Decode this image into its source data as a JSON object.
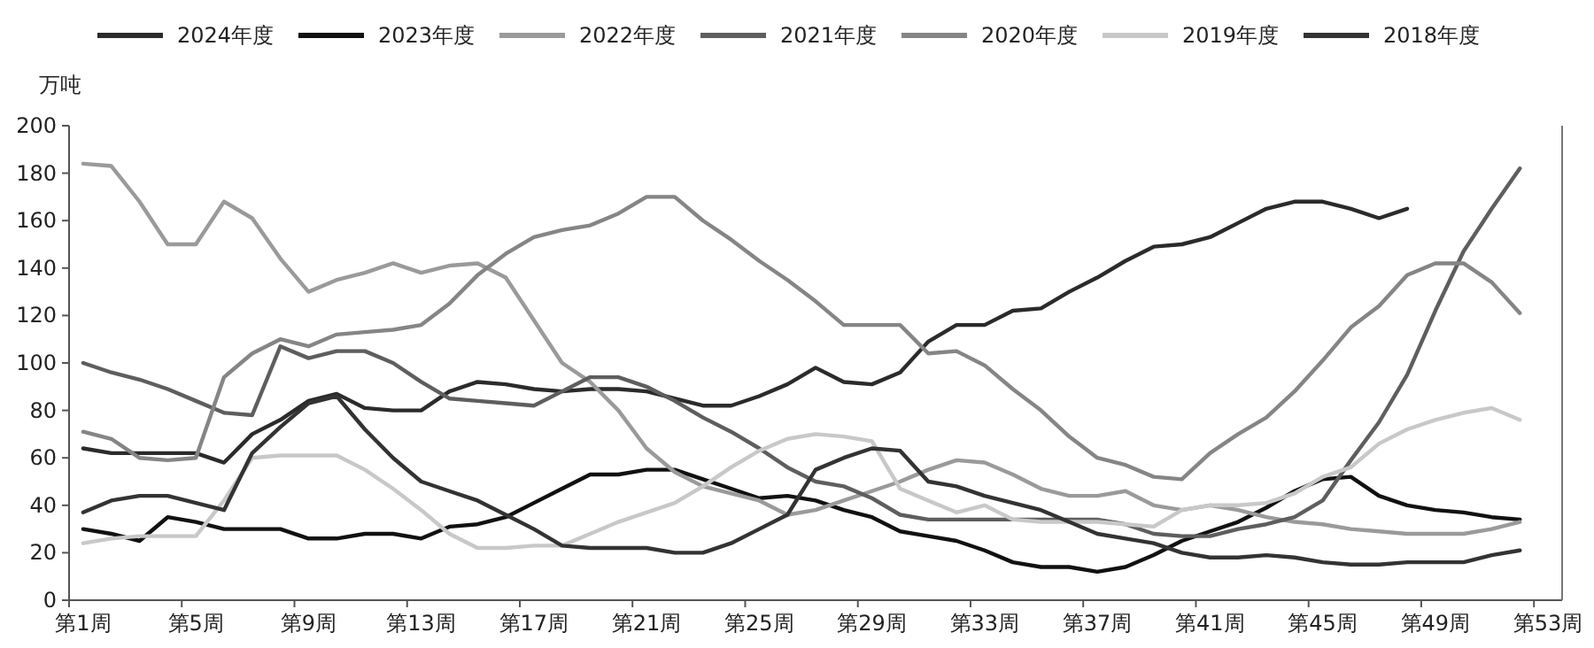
{
  "chart_data": {
    "type": "line",
    "ylabel": "万吨",
    "legend": "top",
    "categories": [
      "第1周",
      null,
      null,
      null,
      "第5周",
      null,
      null,
      null,
      "第9周",
      null,
      null,
      null,
      "第13周",
      null,
      null,
      null,
      "第17周",
      null,
      null,
      null,
      "第21周",
      null,
      null,
      null,
      "第25周",
      null,
      null,
      null,
      "第29周",
      null,
      null,
      null,
      "第33周",
      null,
      null,
      null,
      "第37周",
      null,
      null,
      null,
      "第41周",
      null,
      null,
      null,
      "第45周",
      null,
      null,
      null,
      "第49周",
      null,
      null,
      null,
      "第53周"
    ],
    "ylim": [
      0,
      200
    ],
    "yticks": [
      0,
      20,
      40,
      60,
      80,
      100,
      120,
      140,
      160,
      180,
      200
    ],
    "series": [
      {
        "name": "2024年度",
        "color": "#2b2b2b",
        "values": [
          64,
          62,
          62,
          62,
          62,
          58,
          70,
          76,
          84,
          87,
          81,
          80,
          80,
          88,
          92,
          91,
          89,
          88,
          89,
          89,
          88,
          85,
          82,
          82,
          86,
          91,
          98,
          92,
          91,
          96,
          109,
          116,
          116,
          122,
          123,
          130,
          136,
          143,
          149,
          150,
          153,
          159,
          165,
          168,
          168,
          165,
          161,
          165,
          null,
          null,
          null,
          null,
          null
        ]
      },
      {
        "name": "2023年度",
        "color": "#111111",
        "values": [
          30,
          28,
          25,
          35,
          33,
          30,
          30,
          30,
          26,
          26,
          28,
          28,
          26,
          31,
          32,
          35,
          41,
          47,
          53,
          53,
          55,
          55,
          51,
          47,
          43,
          44,
          42,
          38,
          35,
          29,
          27,
          25,
          21,
          16,
          14,
          14,
          12,
          14,
          19,
          25,
          29,
          33,
          39,
          46,
          51,
          52,
          44,
          40,
          38,
          37,
          35,
          34,
          null
        ]
      },
      {
        "name": "2022年度",
        "color": "#9a9a9a",
        "values": [
          184,
          183,
          168,
          150,
          150,
          168,
          161,
          144,
          130,
          135,
          138,
          142,
          138,
          141,
          142,
          136,
          118,
          100,
          92,
          80,
          64,
          54,
          48,
          45,
          42,
          36,
          38,
          42,
          46,
          50,
          55,
          59,
          58,
          53,
          47,
          44,
          44,
          46,
          40,
          38,
          40,
          38,
          35,
          33,
          32,
          30,
          29,
          28,
          28,
          28,
          30,
          33,
          null
        ]
      },
      {
        "name": "2021年度",
        "color": "#5e5e5e",
        "values": [
          100,
          96,
          93,
          89,
          84,
          79,
          78,
          107,
          102,
          105,
          105,
          100,
          92,
          85,
          84,
          83,
          82,
          88,
          94,
          94,
          90,
          84,
          77,
          71,
          64,
          56,
          50,
          48,
          43,
          36,
          34,
          34,
          34,
          34,
          34,
          34,
          34,
          32,
          28,
          27,
          27,
          30,
          32,
          35,
          42,
          59,
          75,
          95,
          122,
          147,
          165,
          182,
          null
        ]
      },
      {
        "name": "2020年度",
        "color": "#858585",
        "values": [
          71,
          68,
          60,
          59,
          60,
          94,
          104,
          110,
          107,
          112,
          113,
          114,
          116,
          125,
          137,
          146,
          153,
          156,
          158,
          163,
          170,
          170,
          160,
          152,
          143,
          135,
          126,
          116,
          116,
          116,
          104,
          105,
          99,
          89,
          80,
          69,
          60,
          57,
          52,
          51,
          62,
          70,
          77,
          88,
          101,
          115,
          124,
          137,
          142,
          142,
          134,
          121,
          null
        ]
      },
      {
        "name": "2019年度",
        "color": "#c8c8c8",
        "values": [
          24,
          26,
          27,
          27,
          27,
          42,
          60,
          61,
          61,
          61,
          55,
          47,
          38,
          28,
          22,
          22,
          23,
          23,
          28,
          33,
          37,
          41,
          48,
          56,
          63,
          68,
          70,
          69,
          67,
          47,
          42,
          37,
          40,
          34,
          33,
          33,
          33,
          32,
          31,
          38,
          40,
          40,
          41,
          45,
          52,
          56,
          66,
          72,
          76,
          79,
          81,
          76,
          null
        ]
      },
      {
        "name": "2018年度",
        "color": "#333333",
        "values": [
          37,
          42,
          44,
          44,
          41,
          38,
          62,
          73,
          83,
          86,
          72,
          60,
          50,
          46,
          42,
          36,
          30,
          23,
          22,
          22,
          22,
          20,
          20,
          24,
          30,
          36,
          55,
          60,
          64,
          63,
          50,
          48,
          44,
          41,
          38,
          33,
          28,
          26,
          24,
          20,
          18,
          18,
          19,
          18,
          16,
          15,
          15,
          16,
          16,
          16,
          19,
          21,
          null
        ]
      }
    ]
  }
}
